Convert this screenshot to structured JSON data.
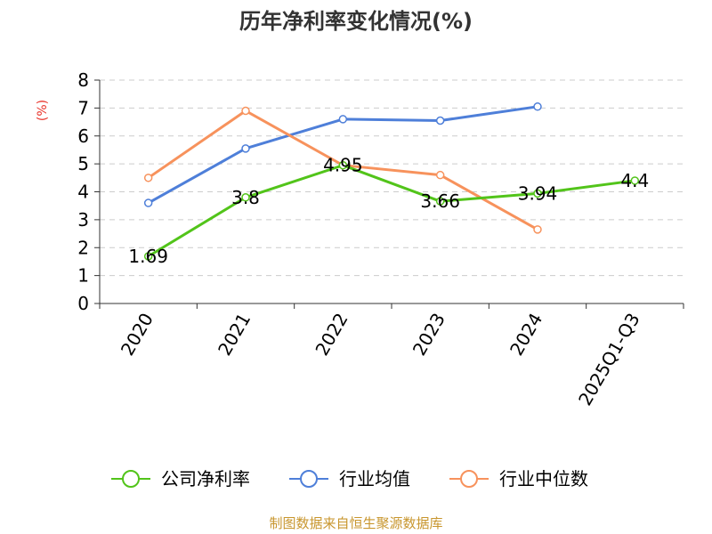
{
  "chart_data": {
    "type": "line",
    "title": "历年净利率变化情况(%)",
    "ylabel": "(%)",
    "categories": [
      "2020",
      "2021",
      "2022",
      "2023",
      "2024",
      "2025Q1-Q3"
    ],
    "ylim": [
      0,
      8
    ],
    "yticks": [
      "0",
      "1",
      "2",
      "3",
      "4",
      "5",
      "6",
      "7",
      "8"
    ],
    "grid": true,
    "legend_position": "bottom",
    "series": [
      {
        "name": "公司净利率",
        "color": "#52c41a",
        "values": [
          1.69,
          3.8,
          4.95,
          3.66,
          3.94,
          4.4
        ],
        "labels": [
          "1.69",
          "3.8",
          "4.95",
          "3.66",
          "3.94",
          "4.4"
        ]
      },
      {
        "name": "行业均值",
        "color": "#4e7fd9",
        "values": [
          3.6,
          5.55,
          6.6,
          6.55,
          7.05,
          null
        ]
      },
      {
        "name": "行业中位数",
        "color": "#f7925c",
        "values": [
          4.5,
          6.9,
          4.95,
          4.6,
          2.65,
          null
        ]
      }
    ]
  },
  "source": "制图数据来自恒生聚源数据库"
}
